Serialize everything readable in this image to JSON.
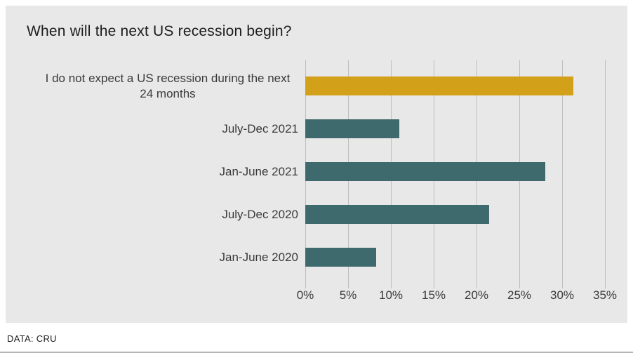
{
  "chart_data": {
    "type": "bar",
    "orientation": "horizontal",
    "title": "When will the next US recession begin?",
    "categories": [
      "I do not expect a US recession during the next 24 months",
      "July-Dec 2021",
      "Jan-June 2021",
      "July-Dec 2020",
      "Jan-June 2020"
    ],
    "values": [
      31.3,
      11,
      28,
      21.5,
      8.3
    ],
    "unit": "%",
    "colors": [
      "#d3a019",
      "#3e6a6e",
      "#3e6a6e",
      "#3e6a6e",
      "#3e6a6e"
    ],
    "accent_color": "#d3a019",
    "series_color": "#3e6a6e",
    "xlim": [
      0,
      35
    ],
    "x_tick_values": [
      0,
      5,
      10,
      15,
      20,
      25,
      30,
      35
    ],
    "x_ticks": [
      "0%",
      "5%",
      "10%",
      "15%",
      "20%",
      "25%",
      "30%",
      "35%"
    ],
    "grid": true,
    "legend": false,
    "panel_background": "#e8e8e8"
  },
  "footer": {
    "source": "DATA: CRU"
  }
}
